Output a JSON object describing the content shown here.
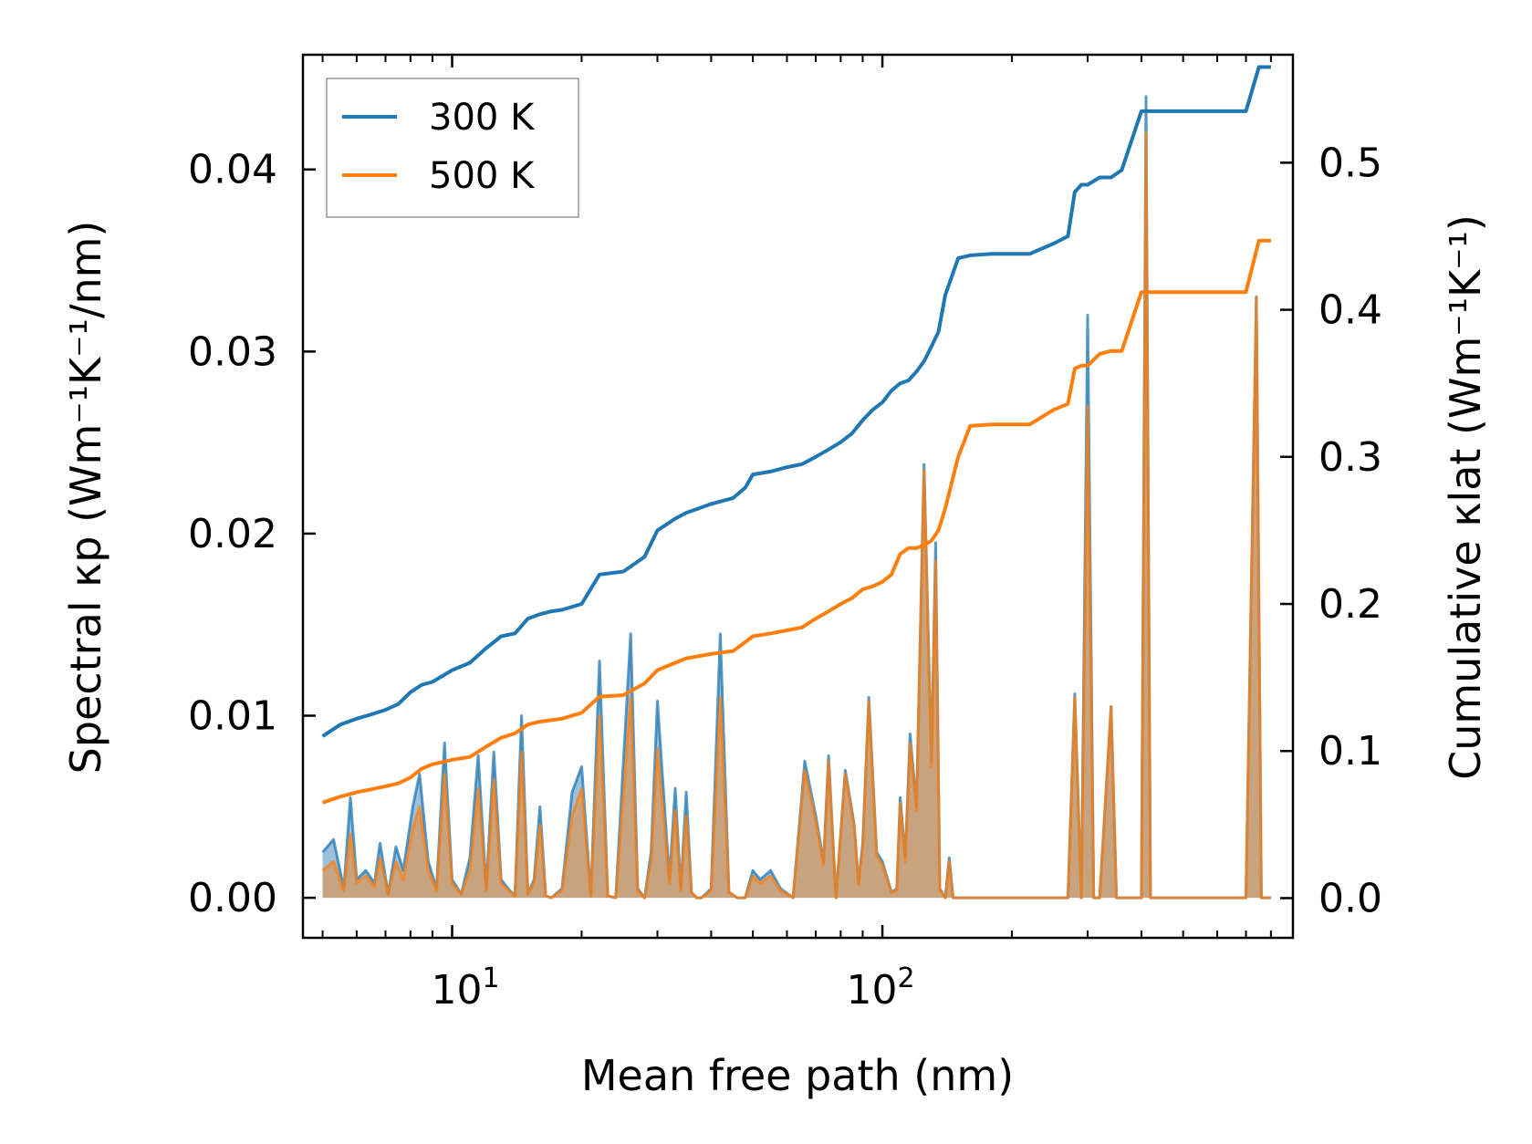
{
  "chart_data": {
    "type": "line",
    "xlabel": "Mean free path (nm)",
    "ylabel_left": "Spectral κp (Wm⁻¹K⁻¹/nm)",
    "ylabel_right": "Cumulative κlat (Wm⁻¹K⁻¹)",
    "x_scale": "log",
    "xlim": [
      4.5,
      900
    ],
    "ylim_left": [
      -0.0022,
      0.0463
    ],
    "ylim_right": [
      -0.027,
      0.5734
    ],
    "x_ticks": [
      10,
      100
    ],
    "y_ticks_left": [
      0.0,
      0.01,
      0.02,
      0.03,
      0.04
    ],
    "y_tick_labels_left": [
      "0.00",
      "0.01",
      "0.02",
      "0.03",
      "0.04"
    ],
    "y_ticks_right": [
      0.0,
      0.1,
      0.2,
      0.3,
      0.4,
      0.5
    ],
    "y_tick_labels_right": [
      "0.0",
      "0.1",
      "0.2",
      "0.3",
      "0.4",
      "0.5"
    ],
    "legend": {
      "position": "top-left",
      "entries": [
        "300 K",
        "500 K"
      ]
    },
    "colors": {
      "300 K": "#1f77b4",
      "500 K": "#ff7f0e",
      "fill": "#c6a07a"
    },
    "series": [
      {
        "name": "300 K",
        "axis": "right",
        "kind": "cumulative",
        "x": [
          5,
          5.5,
          6,
          6.5,
          7,
          7.5,
          8,
          8.5,
          9,
          10,
          11,
          12,
          13,
          14,
          15,
          16,
          17,
          18,
          20,
          22,
          25,
          28,
          30,
          33,
          35,
          40,
          45,
          48,
          50,
          55,
          60,
          65,
          70,
          75,
          80,
          85,
          90,
          95,
          100,
          105,
          110,
          115,
          120,
          125,
          130,
          135,
          140,
          150,
          160,
          180,
          200,
          220,
          250,
          270,
          280,
          290,
          300,
          320,
          340,
          360,
          400,
          420,
          500,
          600,
          700,
          750,
          800
        ],
        "values": [
          0.11,
          0.118,
          0.122,
          0.125,
          0.128,
          0.132,
          0.14,
          0.145,
          0.147,
          0.155,
          0.16,
          0.17,
          0.178,
          0.18,
          0.19,
          0.193,
          0.195,
          0.196,
          0.2,
          0.22,
          0.222,
          0.232,
          0.25,
          0.258,
          0.262,
          0.268,
          0.272,
          0.279,
          0.288,
          0.29,
          0.293,
          0.295,
          0.3,
          0.305,
          0.31,
          0.316,
          0.325,
          0.332,
          0.337,
          0.345,
          0.35,
          0.352,
          0.358,
          0.365,
          0.375,
          0.385,
          0.41,
          0.435,
          0.437,
          0.438,
          0.438,
          0.438,
          0.445,
          0.45,
          0.48,
          0.485,
          0.485,
          0.49,
          0.49,
          0.495,
          0.535,
          0.535,
          0.535,
          0.535,
          0.535,
          0.565,
          0.565
        ]
      },
      {
        "name": "500 K",
        "axis": "right",
        "kind": "cumulative",
        "x": [
          5,
          5.5,
          6,
          6.5,
          7,
          7.5,
          8,
          8.5,
          9,
          10,
          11,
          12,
          13,
          14,
          15,
          16,
          17,
          18,
          20,
          22,
          25,
          28,
          30,
          33,
          35,
          40,
          45,
          48,
          50,
          55,
          60,
          65,
          70,
          75,
          80,
          85,
          90,
          95,
          100,
          105,
          110,
          115,
          120,
          125,
          130,
          135,
          140,
          150,
          160,
          180,
          200,
          220,
          250,
          270,
          280,
          290,
          300,
          320,
          340,
          360,
          400,
          420,
          500,
          600,
          700,
          750,
          800
        ],
        "values": [
          0.065,
          0.069,
          0.072,
          0.074,
          0.076,
          0.078,
          0.082,
          0.088,
          0.091,
          0.094,
          0.096,
          0.103,
          0.109,
          0.112,
          0.118,
          0.12,
          0.121,
          0.122,
          0.126,
          0.137,
          0.138,
          0.146,
          0.155,
          0.16,
          0.163,
          0.166,
          0.168,
          0.174,
          0.178,
          0.18,
          0.182,
          0.184,
          0.19,
          0.195,
          0.2,
          0.204,
          0.21,
          0.212,
          0.215,
          0.22,
          0.234,
          0.238,
          0.238,
          0.24,
          0.243,
          0.25,
          0.265,
          0.3,
          0.321,
          0.322,
          0.322,
          0.322,
          0.332,
          0.336,
          0.36,
          0.362,
          0.362,
          0.37,
          0.372,
          0.372,
          0.412,
          0.412,
          0.412,
          0.412,
          0.412,
          0.447,
          0.447
        ]
      },
      {
        "name": "300 K",
        "axis": "left",
        "kind": "spectral",
        "x": [
          5,
          5.3,
          5.6,
          5.8,
          6,
          6.3,
          6.6,
          6.8,
          7.1,
          7.4,
          7.7,
          8.1,
          8.4,
          8.8,
          9.2,
          9.6,
          10,
          10.5,
          11,
          11.5,
          12,
          12.5,
          13,
          13.5,
          14,
          14.5,
          15,
          15.5,
          16,
          16.5,
          17,
          18,
          19,
          20,
          21,
          22,
          23,
          24,
          26,
          27,
          28,
          29,
          30,
          32,
          33,
          34,
          35,
          36,
          37,
          38,
          40,
          42,
          44,
          46,
          48,
          50,
          52,
          55,
          58,
          62,
          66,
          70,
          73,
          75,
          78,
          82,
          86,
          88,
          90,
          93,
          97,
          100,
          105,
          108,
          110,
          113,
          116,
          120,
          125,
          130,
          133,
          136,
          140,
          143,
          146,
          150,
          153,
          156,
          160,
          163,
          170,
          180,
          185,
          190,
          200,
          220,
          240,
          260,
          270,
          280,
          290,
          300,
          310,
          320,
          340,
          350,
          360,
          380,
          400,
          410,
          420,
          430,
          440,
          500,
          600,
          700,
          740,
          760,
          780,
          800
        ],
        "values": [
          0.0025,
          0.0032,
          0.0005,
          0.0055,
          0.001,
          0.0015,
          0.0008,
          0.003,
          0.0002,
          0.0028,
          0.0015,
          0.005,
          0.0068,
          0.002,
          0.0005,
          0.0085,
          0.001,
          0.0002,
          0.0022,
          0.0078,
          0.0005,
          0.008,
          0.001,
          0.0005,
          0.0001,
          0.01,
          0.0002,
          0.001,
          0.005,
          0.0001,
          0.0,
          0.0005,
          0.0058,
          0.0072,
          0.0001,
          0.013,
          0.0001,
          0.0,
          0.0145,
          0.0005,
          0.0,
          0.0025,
          0.0108,
          0.001,
          0.006,
          0.0005,
          0.0058,
          0.0003,
          0.0,
          0.0,
          0.0005,
          0.0145,
          0.0003,
          0.0,
          0.0,
          0.0015,
          0.001,
          0.0015,
          0.0005,
          0.0,
          0.0075,
          0.0045,
          0.002,
          0.0078,
          0.0,
          0.007,
          0.004,
          0.0008,
          0.003,
          0.011,
          0.0025,
          0.002,
          0.0003,
          0.0005,
          0.0055,
          0.0022,
          0.009,
          0.005,
          0.0238,
          0.0075,
          0.0195,
          0.0005,
          0.0,
          0.0022,
          0.0,
          0.0,
          0.0,
          0.0,
          0.0,
          0.0,
          0.0,
          0.0,
          0.0,
          0.0,
          0.0,
          0.0,
          0.0,
          0.0,
          0.0,
          0.0112,
          0.0,
          0.032,
          0.0,
          0.0,
          0.0105,
          0.0,
          0.0,
          0.0,
          0.0,
          0.044,
          0.0,
          0.0,
          0.0,
          0.0,
          0.0,
          0.0,
          0.033,
          0.0,
          0.0,
          0.0
        ]
      },
      {
        "name": "500 K",
        "axis": "left",
        "kind": "spectral",
        "x": [
          5,
          5.3,
          5.6,
          5.8,
          6,
          6.3,
          6.6,
          6.8,
          7.1,
          7.4,
          7.7,
          8.1,
          8.4,
          8.8,
          9.2,
          9.6,
          10,
          10.5,
          11,
          11.5,
          12,
          12.5,
          13,
          13.5,
          14,
          14.5,
          15,
          15.5,
          16,
          16.5,
          17,
          18,
          19,
          20,
          21,
          22,
          23,
          24,
          26,
          27,
          28,
          29,
          30,
          32,
          33,
          34,
          35,
          36,
          37,
          38,
          40,
          42,
          44,
          46,
          48,
          50,
          52,
          55,
          58,
          62,
          66,
          70,
          73,
          75,
          78,
          82,
          86,
          88,
          90,
          93,
          97,
          100,
          105,
          108,
          110,
          113,
          116,
          120,
          125,
          130,
          133,
          136,
          140,
          143,
          146,
          150,
          153,
          156,
          160,
          163,
          170,
          180,
          185,
          190,
          200,
          220,
          240,
          260,
          270,
          280,
          290,
          300,
          310,
          320,
          340,
          350,
          360,
          380,
          400,
          410,
          420,
          430,
          440,
          500,
          600,
          700,
          740,
          760,
          780,
          800
        ],
        "values": [
          0.0015,
          0.002,
          0.0004,
          0.0035,
          0.0008,
          0.0012,
          0.0006,
          0.0022,
          0.0002,
          0.002,
          0.001,
          0.0038,
          0.005,
          0.0015,
          0.0004,
          0.0068,
          0.0008,
          0.0002,
          0.0015,
          0.006,
          0.0004,
          0.0065,
          0.0008,
          0.0004,
          0.0001,
          0.008,
          0.0002,
          0.0008,
          0.004,
          0.0001,
          0.0,
          0.0004,
          0.0045,
          0.006,
          0.0001,
          0.01,
          0.0001,
          0.0,
          0.011,
          0.0004,
          0.0,
          0.002,
          0.0082,
          0.0008,
          0.0048,
          0.0004,
          0.0045,
          0.0003,
          0.0,
          0.0,
          0.0004,
          0.011,
          0.0003,
          0.0,
          0.0,
          0.0012,
          0.0008,
          0.0012,
          0.0004,
          0.0,
          0.007,
          0.0042,
          0.0018,
          0.0075,
          0.0,
          0.0068,
          0.0038,
          0.0007,
          0.0028,
          0.0108,
          0.0023,
          0.0018,
          0.0003,
          0.0004,
          0.0052,
          0.002,
          0.0085,
          0.0048,
          0.0235,
          0.0072,
          0.0185,
          0.0004,
          0.0,
          0.002,
          0.0,
          0.0,
          0.0,
          0.0,
          0.0,
          0.0,
          0.0,
          0.0,
          0.0,
          0.0,
          0.0,
          0.0,
          0.0,
          0.0,
          0.0,
          0.011,
          0.0,
          0.027,
          0.0,
          0.0,
          0.0105,
          0.0,
          0.0,
          0.0,
          0.0,
          0.042,
          0.0,
          0.0,
          0.0,
          0.0,
          0.0,
          0.0,
          0.033,
          0.0,
          0.0,
          0.0
        ]
      }
    ]
  }
}
